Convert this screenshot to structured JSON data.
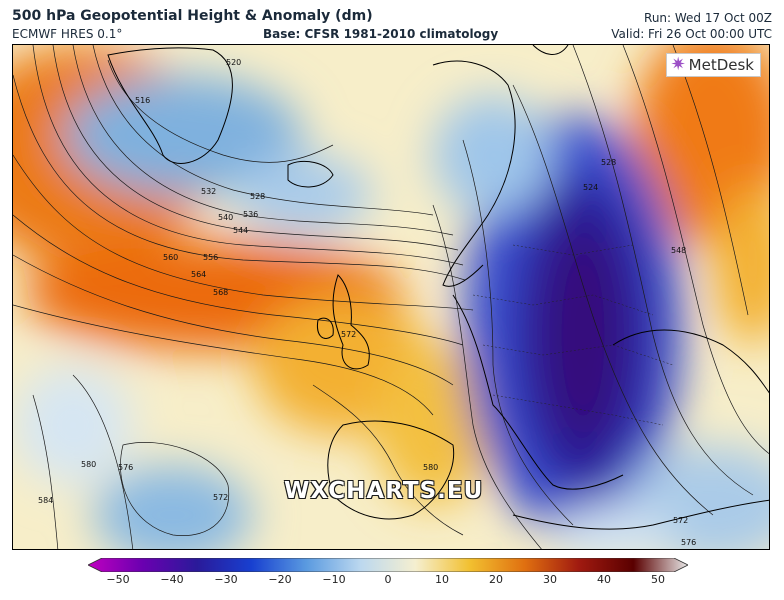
{
  "header": {
    "title": "500 hPa Geopotential Height & Anomaly (dm)",
    "model": "ECMWF HRES 0.1°",
    "base": "Base: CFSR 1981-2010 climatology",
    "run": "Run: Wed 17 Oct 00Z",
    "valid": "Valid: Fri 26 Oct 00:00 UTC"
  },
  "branding": {
    "logo_text": "MetDesk",
    "watermark": "WXCHARTS.EU"
  },
  "colorbar": {
    "ticks": [
      "−50",
      "−40",
      "−30",
      "−20",
      "−10",
      "0",
      "10",
      "20",
      "30",
      "40",
      "50"
    ],
    "colors": [
      "#c000c0",
      "#6a00b0",
      "#2a1a9a",
      "#1840d0",
      "#5a9ae0",
      "#bcd8ef",
      "#f5efd0",
      "#f2c030",
      "#e07010",
      "#a01a10",
      "#5a0000",
      "#e8e8e8"
    ]
  },
  "map": {
    "contour_labels": [
      {
        "text": "520"
      },
      {
        "text": "516"
      },
      {
        "text": "528"
      },
      {
        "text": "532"
      },
      {
        "text": "536"
      },
      {
        "text": "540"
      },
      {
        "text": "544"
      },
      {
        "text": "560"
      },
      {
        "text": "556"
      },
      {
        "text": "564"
      },
      {
        "text": "568"
      },
      {
        "text": "572"
      },
      {
        "text": "528"
      },
      {
        "text": "524"
      },
      {
        "text": "548"
      },
      {
        "text": "580"
      },
      {
        "text": "576"
      },
      {
        "text": "584"
      },
      {
        "text": "572"
      },
      {
        "text": "580"
      },
      {
        "text": "572"
      },
      {
        "text": "576"
      }
    ]
  }
}
